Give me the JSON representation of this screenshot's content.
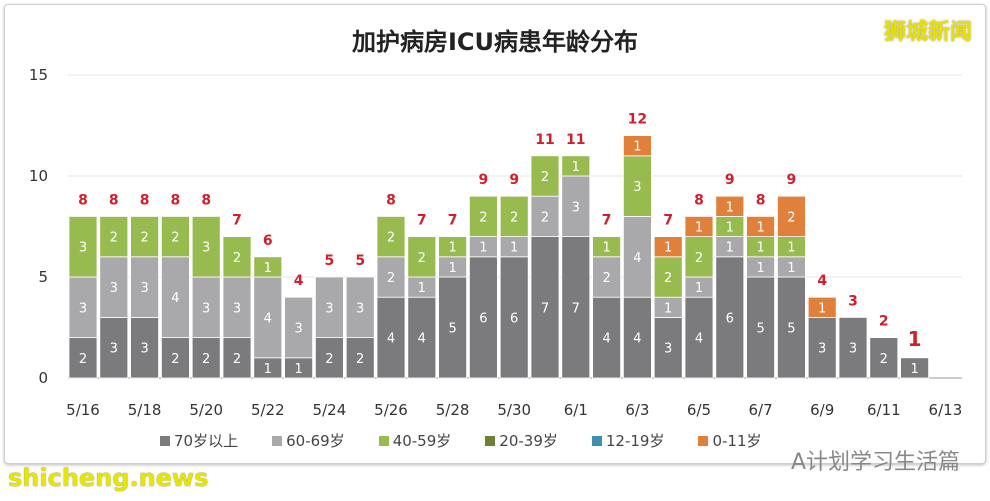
{
  "watermark_logo": "狮城新闻",
  "watermark_site": "shicheng.news",
  "watermark_wechat": "A计划学习生活篇",
  "chart_data": {
    "type": "bar",
    "stacked": true,
    "title": "加护病房ICU病患年龄分布",
    "categories": [
      "5/16",
      "5/17",
      "5/18",
      "5/19",
      "5/20",
      "5/21",
      "5/22",
      "5/23",
      "5/24",
      "5/25",
      "5/26",
      "5/27",
      "5/28",
      "5/29",
      "5/30",
      "5/31",
      "6/1",
      "6/2",
      "6/3",
      "6/4",
      "6/5",
      "6/6",
      "6/7",
      "6/8",
      "6/9",
      "6/10",
      "6/11",
      "6/12"
    ],
    "xtick_labels": [
      "5/16",
      "5/18",
      "5/20",
      "5/22",
      "5/24",
      "5/26",
      "5/28",
      "5/30",
      "6/1",
      "6/3",
      "6/5",
      "6/7",
      "6/9",
      "6/11",
      "6/13"
    ],
    "ylim": [
      0,
      15
    ],
    "yticks": [
      0,
      5,
      10,
      15
    ],
    "grid": true,
    "legend_position": "bottom",
    "series": [
      {
        "name": "70岁以上",
        "color": "#7b7b7d",
        "values": [
          2,
          3,
          3,
          2,
          2,
          2,
          1,
          1,
          2,
          2,
          4,
          4,
          5,
          6,
          6,
          7,
          7,
          4,
          4,
          3,
          4,
          6,
          5,
          5,
          3,
          3,
          2,
          1
        ]
      },
      {
        "name": "60-69岁",
        "color": "#a9a9ab",
        "values": [
          3,
          3,
          3,
          4,
          3,
          3,
          4,
          3,
          3,
          3,
          2,
          1,
          1,
          1,
          1,
          2,
          3,
          2,
          4,
          1,
          1,
          1,
          1,
          1,
          0,
          0,
          0,
          0
        ]
      },
      {
        "name": "40-59岁",
        "color": "#98bb50",
        "values": [
          3,
          2,
          2,
          2,
          3,
          2,
          1,
          0,
          0,
          0,
          2,
          2,
          1,
          2,
          2,
          2,
          1,
          1,
          3,
          2,
          2,
          1,
          1,
          1,
          0,
          0,
          0,
          0
        ]
      },
      {
        "name": "20-39岁",
        "color": "#6f7f35",
        "values": [
          0,
          0,
          0,
          0,
          0,
          0,
          0,
          0,
          0,
          0,
          0,
          0,
          0,
          0,
          0,
          0,
          0,
          0,
          0,
          0,
          0,
          0,
          0,
          0,
          0,
          0,
          0,
          0
        ]
      },
      {
        "name": "12-19岁",
        "color": "#3f8fb0",
        "values": [
          0,
          0,
          0,
          0,
          0,
          0,
          0,
          0,
          0,
          0,
          0,
          0,
          0,
          0,
          0,
          0,
          0,
          0,
          0,
          0,
          0,
          0,
          0,
          0,
          0,
          0,
          0,
          0
        ]
      },
      {
        "name": "0-11岁",
        "color": "#e0803a",
        "values": [
          0,
          0,
          0,
          0,
          0,
          0,
          0,
          0,
          0,
          0,
          0,
          0,
          0,
          0,
          0,
          0,
          0,
          0,
          1,
          1,
          1,
          1,
          1,
          2,
          1,
          0,
          0,
          0
        ]
      }
    ],
    "totals": [
      8,
      8,
      8,
      8,
      8,
      7,
      6,
      4,
      5,
      5,
      8,
      7,
      7,
      9,
      9,
      11,
      11,
      7,
      12,
      7,
      8,
      9,
      8,
      9,
      4,
      3,
      2,
      1
    ],
    "total_label_color": "#d0202a"
  }
}
